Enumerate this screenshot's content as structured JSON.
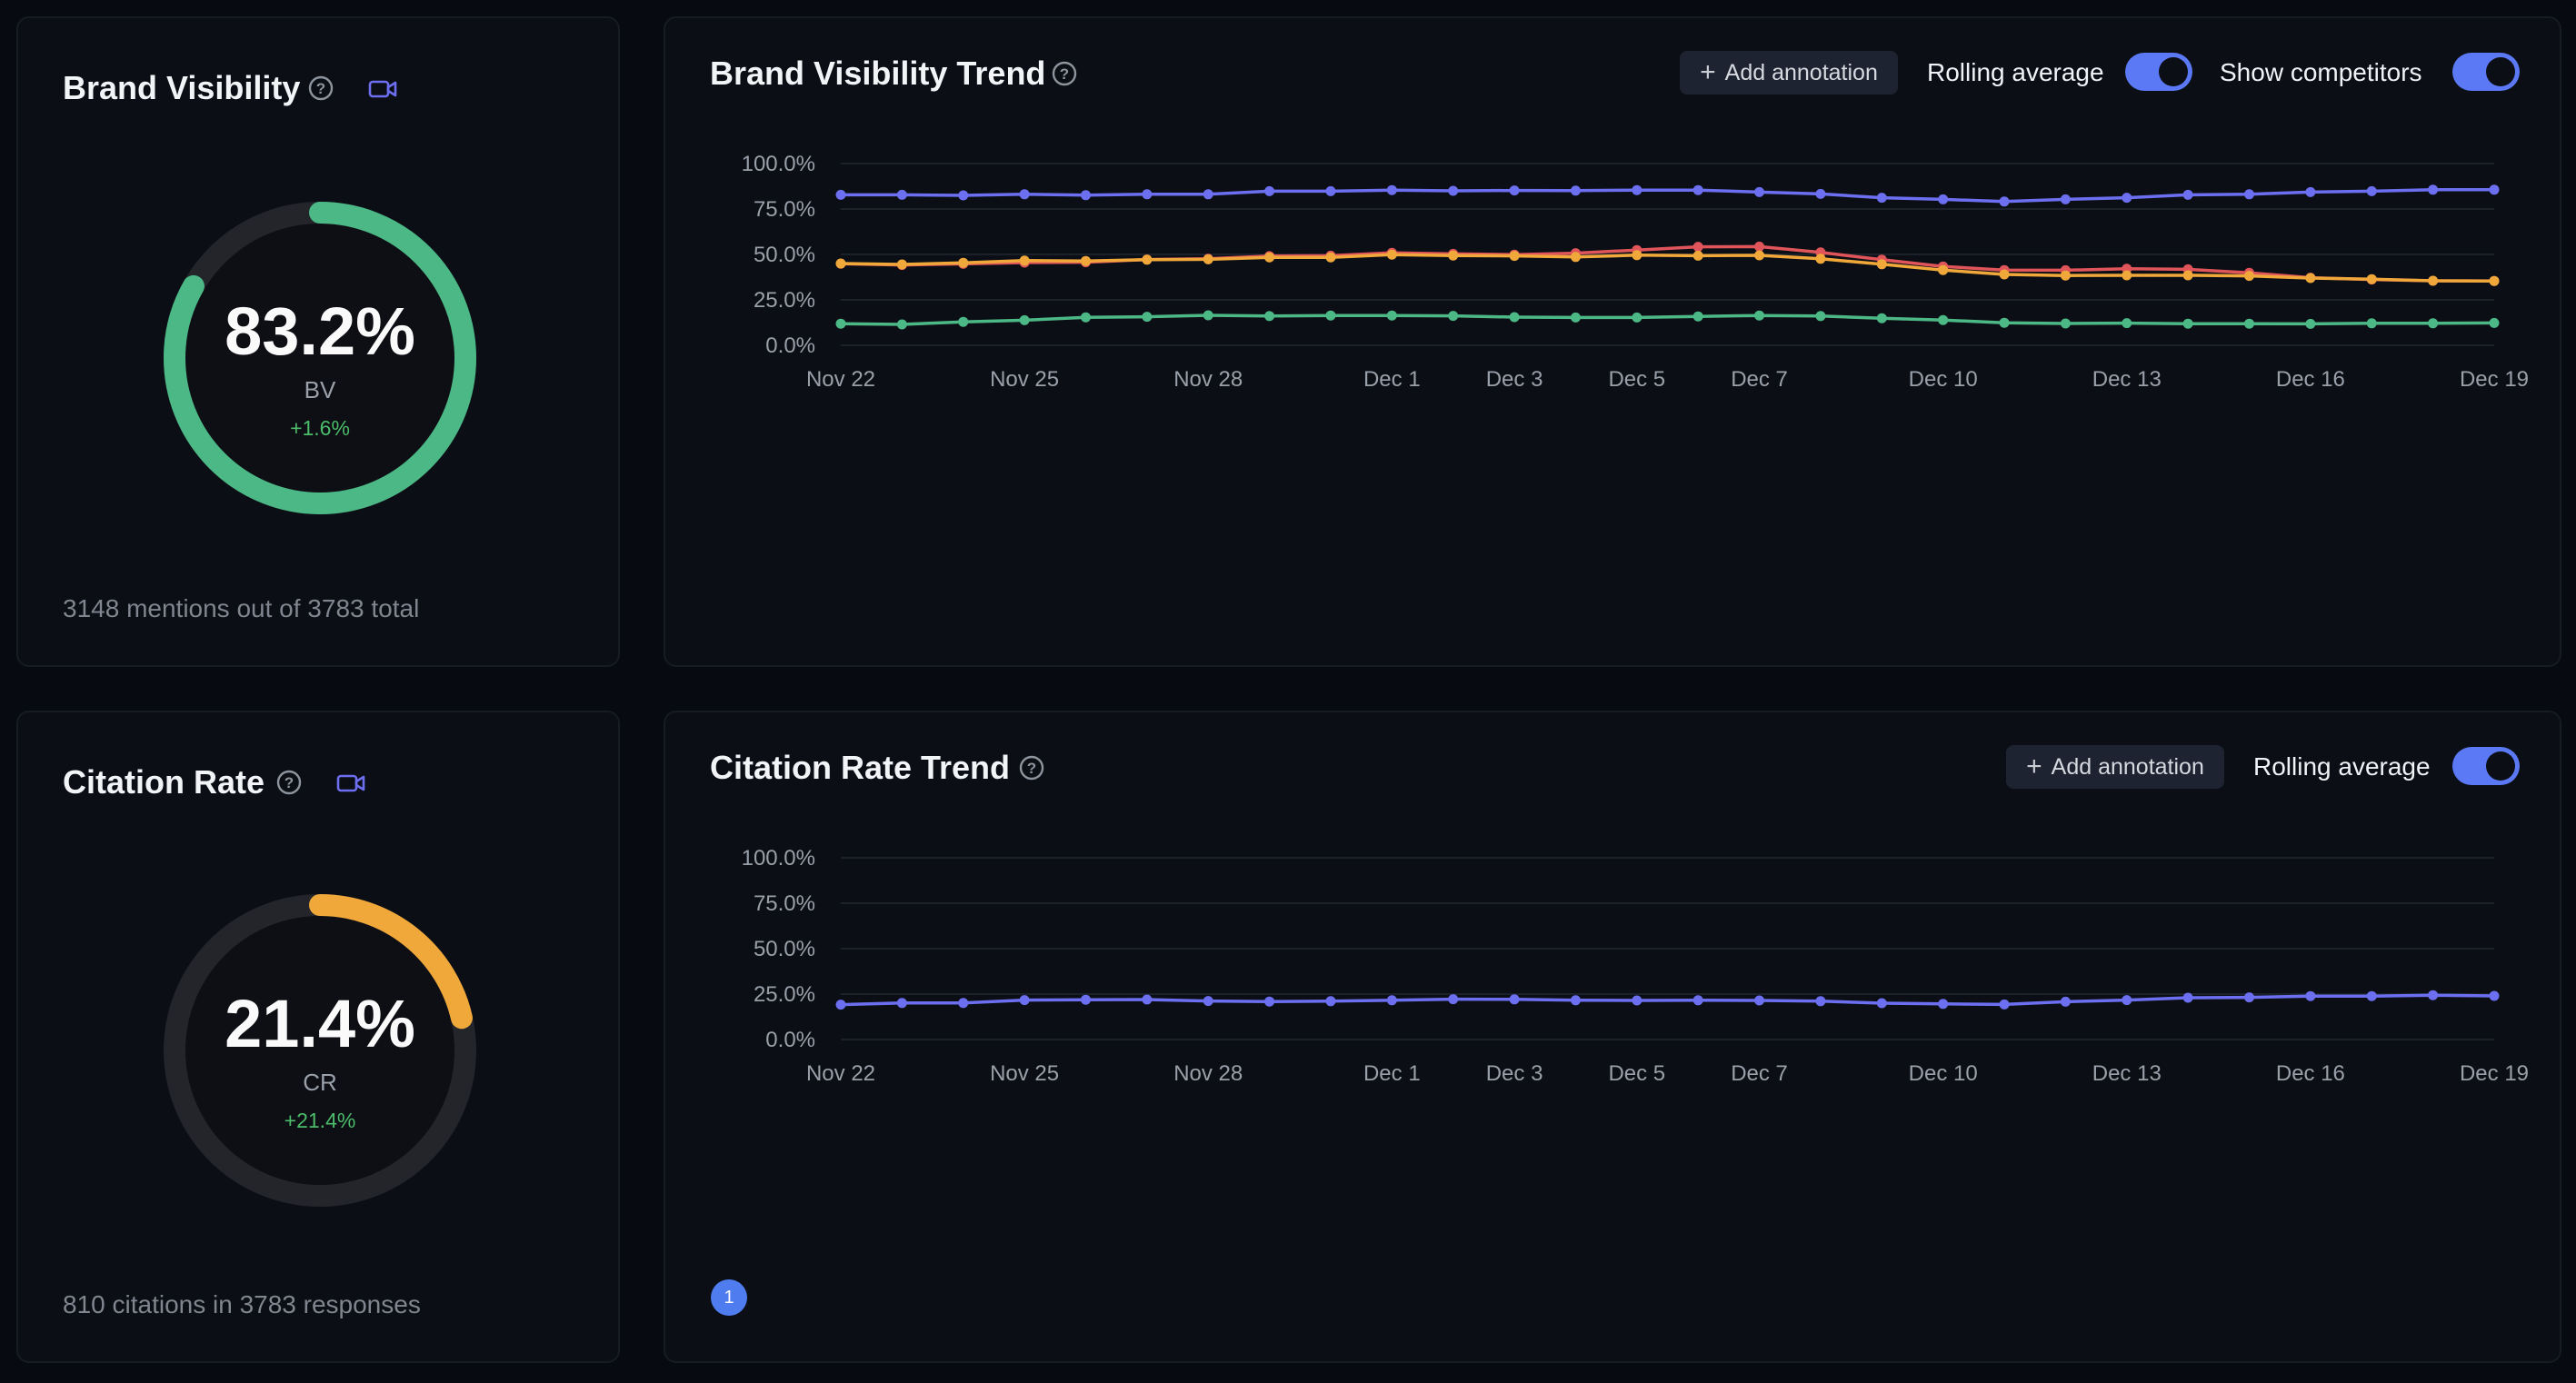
{
  "brand_visibility": {
    "title": "Brand Visibility",
    "value": "83.2%",
    "label": "BV",
    "delta": "+1.6%",
    "progress": 0.832,
    "color": "#4cb886",
    "footnote": "3148 mentions out of 3783 total"
  },
  "citation_rate": {
    "title": "Citation Rate",
    "value": "21.4%",
    "label": "CR",
    "delta": "+21.4%",
    "progress": 0.214,
    "color": "#f0a83a",
    "footnote": "810 citations in 3783 responses"
  },
  "bv_trend": {
    "title": "Brand Visibility Trend",
    "add_annotation": "Add annotation",
    "rolling_average": "Rolling average",
    "rolling_average_on": true,
    "show_competitors": "Show competitors",
    "show_competitors_on": true
  },
  "cr_trend": {
    "title": "Citation Rate Trend",
    "add_annotation": "Add annotation",
    "rolling_average": "Rolling average",
    "rolling_average_on": true,
    "page_badge": "1"
  },
  "icons": {
    "help": "help-circle-icon",
    "video": "video-camera-icon",
    "plus": "plus-icon"
  },
  "chart_data": [
    {
      "type": "line",
      "y_ticks": [
        "100.0%",
        "75.0%",
        "50.0%",
        "25.0%",
        "0.0%"
      ],
      "ylim": [
        0,
        100
      ],
      "x_ticks": [
        {
          "i": 0,
          "label": "Nov 22"
        },
        {
          "i": 3,
          "label": "Nov 25"
        },
        {
          "i": 6,
          "label": "Nov 28"
        },
        {
          "i": 9,
          "label": "Dec 1"
        },
        {
          "i": 11,
          "label": "Dec 3"
        },
        {
          "i": 13,
          "label": "Dec 5"
        },
        {
          "i": 15,
          "label": "Dec 7"
        },
        {
          "i": 18,
          "label": "Dec 10"
        },
        {
          "i": 21,
          "label": "Dec 13"
        },
        {
          "i": 24,
          "label": "Dec 16"
        },
        {
          "i": 27,
          "label": "Dec 19"
        }
      ],
      "grid": true,
      "series": [
        {
          "color": "#6b6ff0",
          "values": [
            82.8,
            82.8,
            82.5,
            83.1,
            82.6,
            83.1,
            83.1,
            84.8,
            84.8,
            85.4,
            85.0,
            85.2,
            85.1,
            85.4,
            85.4,
            84.3,
            83.3,
            81.2,
            80.3,
            79.1,
            80.3,
            81.2,
            82.8,
            83.1,
            84.3,
            84.8,
            85.6,
            85.6
          ]
        },
        {
          "color": "#e0555a",
          "values": [
            44.9,
            44.2,
            44.8,
            45.5,
            45.7,
            47.2,
            47.6,
            49.1,
            49.3,
            50.9,
            50.3,
            49.9,
            50.7,
            52.4,
            54.2,
            54.3,
            51.1,
            47.1,
            43.4,
            41.4,
            41.3,
            42.1,
            41.8,
            39.9,
            37.2,
            36.2,
            35.5,
            35.4
          ]
        },
        {
          "color": "#f0a83a",
          "values": [
            45.0,
            44.5,
            45.4,
            46.6,
            46.4,
            47.1,
            47.3,
            48.4,
            48.4,
            49.9,
            49.4,
            49.2,
            48.6,
            49.6,
            49.3,
            49.5,
            47.6,
            44.6,
            41.4,
            39.0,
            38.4,
            38.5,
            38.5,
            38.2,
            37.0,
            36.4,
            35.5,
            35.4
          ]
        },
        {
          "color": "#4cb886",
          "values": [
            11.9,
            11.5,
            12.9,
            13.8,
            15.4,
            15.7,
            16.5,
            16.1,
            16.4,
            16.4,
            16.2,
            15.5,
            15.3,
            15.3,
            15.9,
            16.4,
            16.1,
            14.9,
            13.9,
            12.4,
            12.0,
            12.2,
            11.9,
            11.9,
            11.8,
            12.1,
            12.1,
            12.3
          ]
        }
      ]
    },
    {
      "type": "line",
      "y_ticks": [
        "100.0%",
        "75.0%",
        "50.0%",
        "25.0%",
        "0.0%"
      ],
      "ylim": [
        0,
        100
      ],
      "x_ticks": [
        {
          "i": 0,
          "label": "Nov 22"
        },
        {
          "i": 3,
          "label": "Nov 25"
        },
        {
          "i": 6,
          "label": "Nov 28"
        },
        {
          "i": 9,
          "label": "Dec 1"
        },
        {
          "i": 11,
          "label": "Dec 3"
        },
        {
          "i": 13,
          "label": "Dec 5"
        },
        {
          "i": 15,
          "label": "Dec 7"
        },
        {
          "i": 18,
          "label": "Dec 10"
        },
        {
          "i": 21,
          "label": "Dec 13"
        },
        {
          "i": 24,
          "label": "Dec 16"
        },
        {
          "i": 27,
          "label": "Dec 19"
        }
      ],
      "grid": true,
      "series": [
        {
          "color": "#6b6ff0",
          "values": [
            19.2,
            20.1,
            20.1,
            21.7,
            21.9,
            22.0,
            21.2,
            20.9,
            21.1,
            21.6,
            22.2,
            22.1,
            21.6,
            21.5,
            21.6,
            21.5,
            21.1,
            20.0,
            19.6,
            19.3,
            20.8,
            21.7,
            23.0,
            23.2,
            23.9,
            23.9,
            24.4,
            24.0
          ]
        }
      ]
    }
  ]
}
